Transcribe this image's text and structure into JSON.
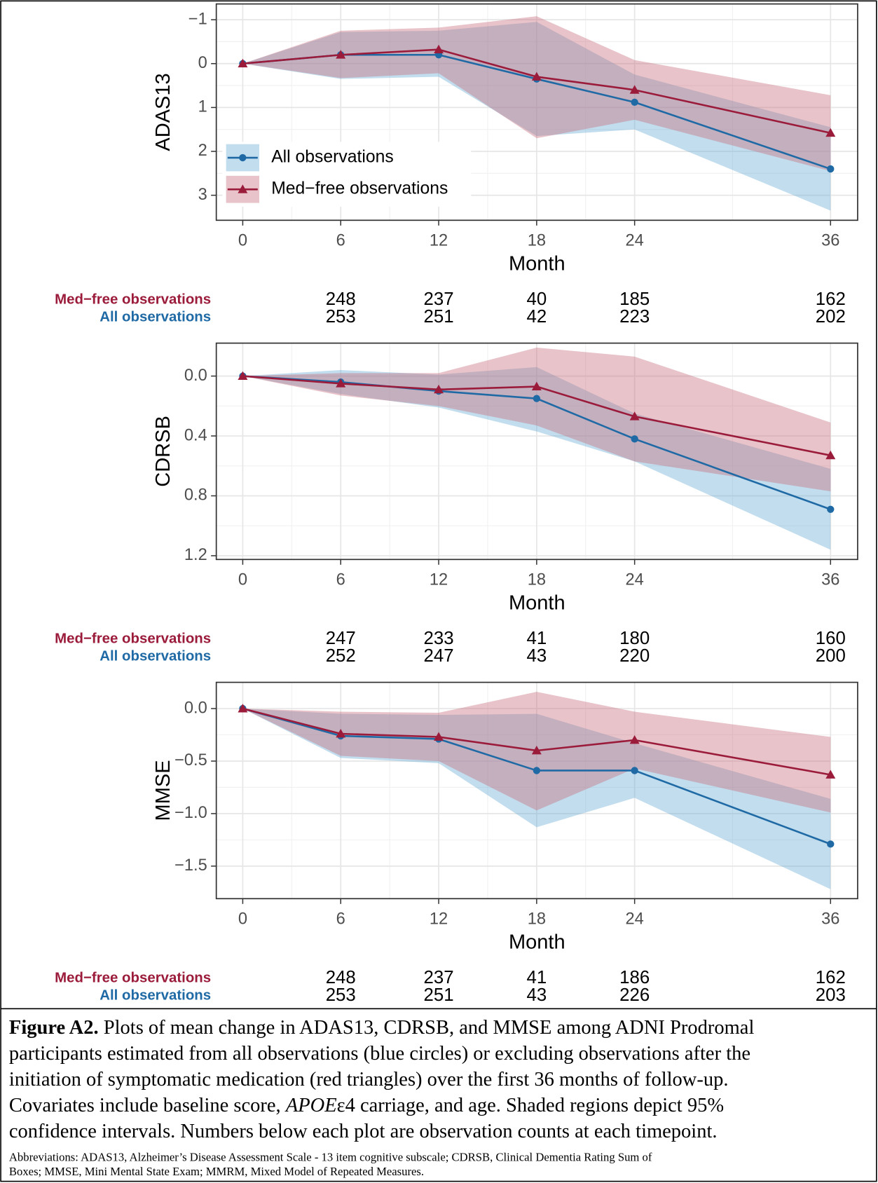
{
  "chart_data": [
    {
      "type": "line",
      "ylabel": "ADAS13",
      "xlabel": "Month",
      "x": [
        0,
        6,
        12,
        18,
        24,
        36
      ],
      "xlim": [
        -1.62,
        37.66
      ],
      "xticks": [
        0,
        6,
        12,
        18,
        24,
        36
      ],
      "ylim": [
        -1.36,
        3.57
      ],
      "y_reversed": true,
      "yticks": [
        {
          "value": -1,
          "label": "−1"
        },
        0,
        1,
        2,
        3
      ],
      "grid": true,
      "legend": "bottom-left",
      "series": [
        {
          "name": "All observations",
          "color": "#1f6aa5",
          "fill": "#6baed6",
          "marker": "circle",
          "values": [
            0,
            -0.2,
            -0.2,
            0.35,
            0.88,
            2.4
          ],
          "ci_lower": [
            0,
            -0.72,
            -0.75,
            -0.95,
            0.25,
            1.45
          ],
          "ci_upper": [
            0,
            0.35,
            0.3,
            1.65,
            1.5,
            3.35
          ],
          "counts": [
            null,
            253,
            251,
            42,
            223,
            202
          ]
        },
        {
          "name": "Med−free observations",
          "color": "#9b1b3b",
          "fill": "#c9707f",
          "marker": "triangle",
          "values": [
            0,
            -0.2,
            -0.32,
            0.3,
            0.6,
            1.58
          ],
          "ci_lower": [
            0,
            -0.75,
            -0.82,
            -1.08,
            -0.08,
            0.72
          ],
          "ci_upper": [
            0,
            0.33,
            0.22,
            1.7,
            1.28,
            2.45
          ],
          "counts": [
            null,
            248,
            237,
            40,
            185,
            162
          ]
        }
      ]
    },
    {
      "type": "line",
      "ylabel": "CDRSB",
      "xlabel": "Month",
      "x": [
        0,
        6,
        12,
        18,
        24,
        36
      ],
      "xlim": [
        -1.62,
        37.66
      ],
      "xticks": [
        0,
        6,
        12,
        18,
        24,
        36
      ],
      "ylim": [
        -0.22,
        1.225
      ],
      "y_reversed": true,
      "yticks": [
        {
          "value": 0,
          "label": "0.0"
        },
        0.4,
        0.8,
        1.2
      ],
      "grid": true,
      "series": [
        {
          "name": "All observations",
          "color": "#1f6aa5",
          "fill": "#6baed6",
          "marker": "circle",
          "values": [
            0,
            0.04,
            0.1,
            0.15,
            0.42,
            0.89
          ],
          "ci_lower": [
            0,
            -0.04,
            -0.01,
            -0.06,
            0.25,
            0.62
          ],
          "ci_upper": [
            0,
            0.12,
            0.21,
            0.37,
            0.57,
            1.16
          ],
          "counts": [
            null,
            252,
            247,
            43,
            220,
            200
          ]
        },
        {
          "name": "Med−free observations",
          "color": "#9b1b3b",
          "fill": "#c9707f",
          "marker": "triangle",
          "values": [
            0,
            0.05,
            0.09,
            0.07,
            0.27,
            0.53
          ],
          "ci_lower": [
            0,
            -0.02,
            -0.02,
            -0.19,
            -0.13,
            0.31
          ],
          "ci_upper": [
            0,
            0.13,
            0.2,
            0.33,
            0.57,
            0.77
          ],
          "counts": [
            null,
            247,
            233,
            41,
            180,
            160
          ]
        }
      ]
    },
    {
      "type": "line",
      "ylabel": "MMSE",
      "xlabel": "Month",
      "x": [
        0,
        6,
        12,
        18,
        24,
        36
      ],
      "xlim": [
        -1.62,
        37.66
      ],
      "xticks": [
        0,
        6,
        12,
        18,
        24,
        36
      ],
      "ylim": [
        -1.81,
        0.25
      ],
      "y_reversed": false,
      "yticks": [
        {
          "value": 0,
          "label": "0.0"
        },
        {
          "value": -0.5,
          "label": "−0.5"
        },
        {
          "value": -1,
          "label": "−1.0"
        },
        {
          "value": -1.5,
          "label": "−1.5"
        }
      ],
      "grid": true,
      "series": [
        {
          "name": "All observations",
          "color": "#1f6aa5",
          "fill": "#6baed6",
          "marker": "circle",
          "values": [
            0,
            -0.26,
            -0.29,
            -0.59,
            -0.59,
            -1.29
          ],
          "ci_lower": [
            0,
            -0.47,
            -0.52,
            -1.13,
            -0.85,
            -1.72
          ],
          "ci_upper": [
            0,
            -0.05,
            -0.06,
            -0.05,
            -0.33,
            -0.86
          ],
          "counts": [
            null,
            253,
            251,
            43,
            226,
            203
          ]
        },
        {
          "name": "Med−free observations",
          "color": "#9b1b3b",
          "fill": "#c9707f",
          "marker": "triangle",
          "values": [
            0,
            -0.24,
            -0.27,
            -0.4,
            -0.3,
            -0.63
          ],
          "ci_lower": [
            0,
            -0.45,
            -0.5,
            -0.97,
            -0.57,
            -0.99
          ],
          "ci_upper": [
            0,
            -0.03,
            -0.04,
            0.16,
            -0.03,
            -0.27
          ],
          "counts": [
            null,
            248,
            237,
            41,
            186,
            162
          ]
        }
      ]
    }
  ],
  "caption": {
    "label": "Figure A2.",
    "lines": [
      [
        " Plots of mean change in ADAS13, CDRSB, and MMSE among ADNI Prodromal"
      ],
      [
        "participants estimated from all observations (blue circles) or excluding observations after the"
      ],
      [
        "initiation of symptomatic medication (red triangles) over the first 36 months of follow-up."
      ],
      [
        "Covariates include baseline score, ",
        {
          "text": "APOE",
          "style": "italic"
        },
        "ε4 carriage, and age. Shaded regions depict 95%"
      ],
      [
        "confidence intervals. Numbers below each plot are observation counts at each timepoint."
      ]
    ],
    "abbreviations": [
      "Abbreviations: ADAS13, Alzheimer’s Disease Assessment Scale - 13 item cognitive subscale; CDRSB, Clinical Dementia Rating Sum of",
      "Boxes; MMSE, Mini Mental State Exam; MMRM, Mixed Model of Repeated Measures."
    ]
  }
}
